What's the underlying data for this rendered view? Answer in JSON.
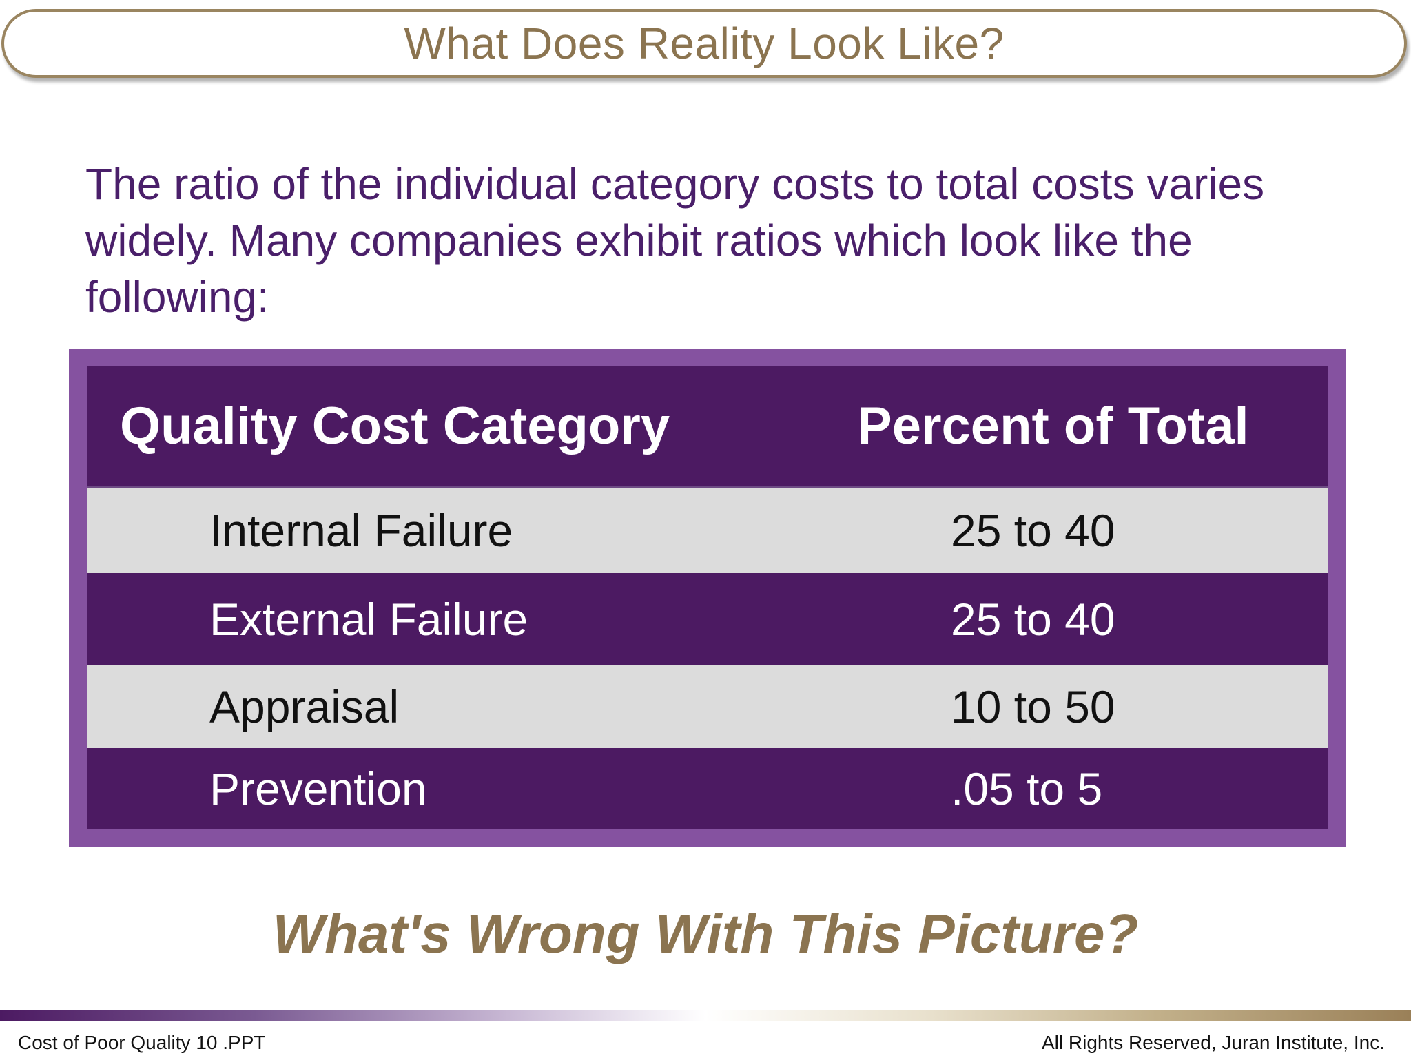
{
  "slide": {
    "title": "What Does Reality Look Like?",
    "intro": "The ratio of the individual category costs to total costs varies widely. Many companies exhibit ratios which look like the following:",
    "table": {
      "headers": [
        "Quality Cost Category",
        "Percent of Total"
      ],
      "rows": [
        {
          "category": "Internal Failure",
          "percent": "25 to 40"
        },
        {
          "category": "External Failure",
          "percent": "25 to 40"
        },
        {
          "category": "Appraisal",
          "percent": "10 to 50"
        },
        {
          "category": "Prevention",
          "percent": ".05 to 5"
        }
      ]
    },
    "question": "What's Wrong With This Picture?"
  },
  "footer": {
    "left": "Cost of Poor Quality 10 .PPT",
    "right": "All Rights Reserved, Juran Institute, Inc."
  },
  "colors": {
    "title_gold": "#8b7450",
    "body_purple": "#4a1f6a",
    "table_dark_purple": "#4c1a62",
    "table_frame_purple": "#8552a0",
    "table_light_row": "#dcdcdc"
  }
}
